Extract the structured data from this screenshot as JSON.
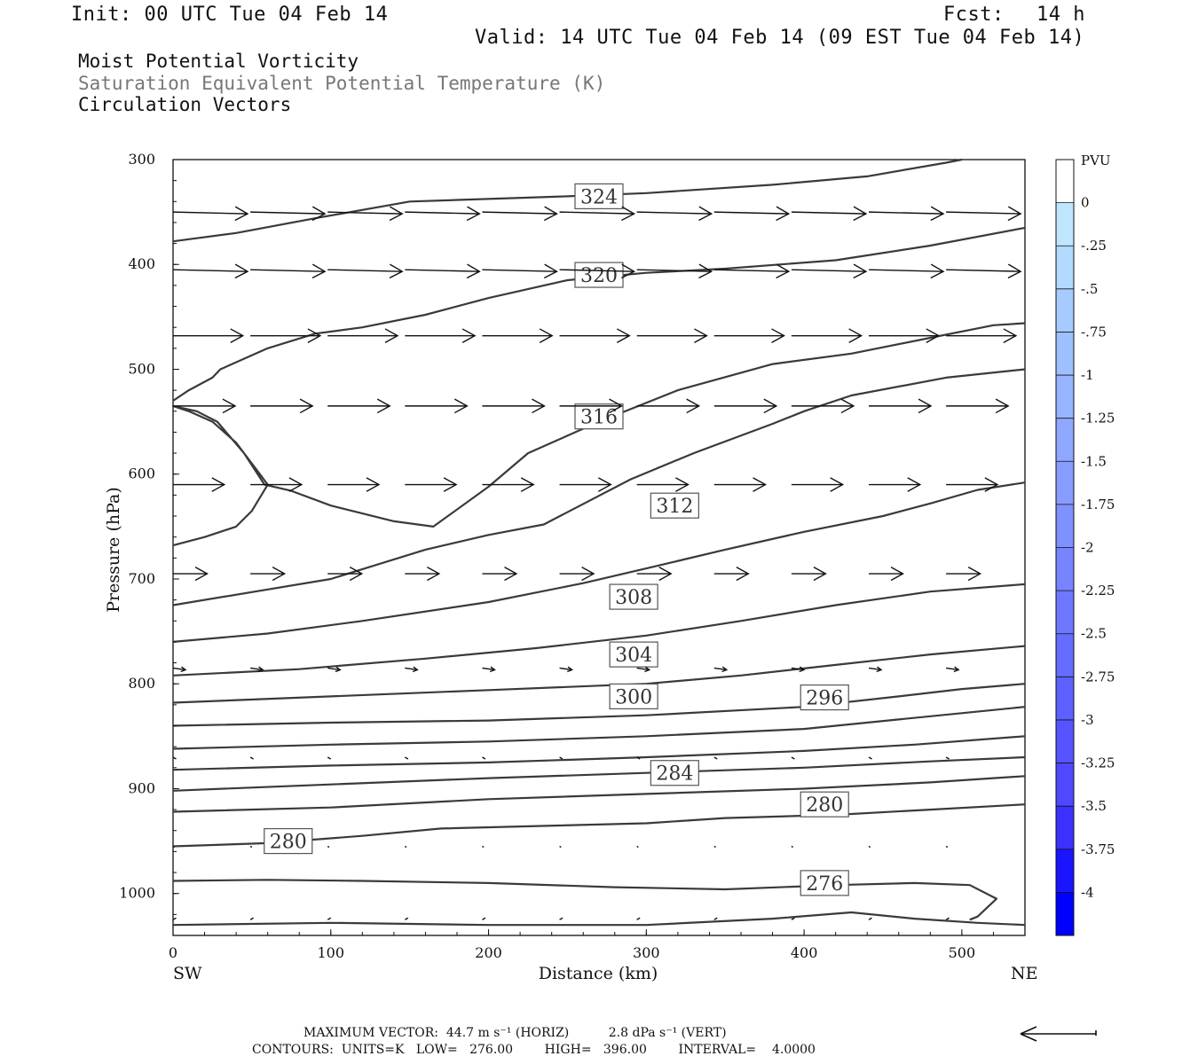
{
  "header": {
    "init": "Init: 00 UTC Tue 04 Feb 14",
    "fcst_label": "Fcst:",
    "fcst_value": "14 h",
    "valid": "Valid: 14 UTC Tue 04 Feb 14 (09 EST Tue 04 Feb 14)"
  },
  "titles": {
    "line1": "Moist Potential Vorticity",
    "line2": "Saturation Equivalent Potential Temperature (K)",
    "line3": "Circulation Vectors"
  },
  "footer": {
    "max_vector": "MAXIMUM VECTOR:  44.7 m s⁻¹ (HORIZ)          2.8 dPa s⁻¹ (VERT)",
    "contours": "CONTOURS:  UNITS=K   LOW=   276.00        HIGH=   396.00        INTERVAL=    4.0000"
  },
  "chart_data": {
    "type": "cross-section contour + vector",
    "xlabel": "Distance (km)",
    "ylabel": "Pressure (hPa)",
    "xlim": [
      0,
      540
    ],
    "ylim": [
      1040,
      300
    ],
    "x_ticks": [
      0,
      100,
      200,
      300,
      400,
      500
    ],
    "y_ticks": [
      300,
      400,
      500,
      600,
      700,
      800,
      900,
      1000
    ],
    "x_end_labels": {
      "left": "SW",
      "right": "NE"
    },
    "colorbar": {
      "label": "PVU",
      "ticks": [
        "0",
        "-.25",
        "-.5",
        "-.75",
        "-1",
        "-1.25",
        "-1.5",
        "-1.75",
        "-2",
        "-2.25",
        "-2.5",
        "-2.75",
        "-3",
        "-3.25",
        "-3.5",
        "-3.75",
        "-4"
      ],
      "colors": [
        "#ffffff",
        "#bfe6ff",
        "#b3d9ff",
        "#a6ccff",
        "#9ec0ff",
        "#97b4ff",
        "#8fa8ff",
        "#879cff",
        "#7f90ff",
        "#7684ff",
        "#6e78ff",
        "#666cff",
        "#5e60ff",
        "#5654ff",
        "#4e48ff",
        "#3c30ff",
        "#1a14ff",
        "#0000ff"
      ]
    },
    "contours": [
      {
        "label": "324",
        "points": [
          [
            0,
            378
          ],
          [
            40,
            370
          ],
          [
            90,
            356
          ],
          [
            150,
            340
          ],
          [
            250,
            335
          ],
          [
            300,
            332
          ],
          [
            380,
            324
          ],
          [
            440,
            316
          ],
          [
            490,
            303
          ],
          [
            500,
            300
          ]
        ]
      },
      {
        "label": "320",
        "points": [
          [
            0,
            530
          ],
          [
            10,
            520
          ],
          [
            25,
            508
          ],
          [
            30,
            500
          ],
          [
            60,
            480
          ],
          [
            90,
            466
          ],
          [
            120,
            460
          ],
          [
            160,
            448
          ],
          [
            200,
            432
          ],
          [
            250,
            415
          ],
          [
            300,
            408
          ],
          [
            350,
            404
          ],
          [
            420,
            396
          ],
          [
            480,
            382
          ],
          [
            540,
            365
          ]
        ]
      },
      {
        "label": "316",
        "points": [
          [
            0,
            668
          ],
          [
            20,
            660
          ],
          [
            40,
            650
          ],
          [
            50,
            635
          ],
          [
            60,
            610
          ],
          [
            55,
            600
          ],
          [
            40,
            570
          ],
          [
            25,
            550
          ],
          [
            10,
            540
          ],
          [
            0,
            535
          ],
          [
            15,
            540
          ],
          [
            28,
            550
          ],
          [
            45,
            580
          ],
          [
            58,
            610
          ],
          [
            75,
            616
          ],
          [
            100,
            630
          ],
          [
            140,
            645
          ],
          [
            165,
            650
          ],
          [
            200,
            612
          ],
          [
            225,
            580
          ],
          [
            270,
            550
          ],
          [
            320,
            520
          ],
          [
            380,
            495
          ],
          [
            430,
            485
          ],
          [
            480,
            470
          ],
          [
            520,
            458
          ],
          [
            540,
            456
          ]
        ]
      },
      {
        "label": "312",
        "points": [
          [
            0,
            725
          ],
          [
            60,
            710
          ],
          [
            100,
            700
          ],
          [
            160,
            672
          ],
          [
            200,
            658
          ],
          [
            235,
            648
          ],
          [
            290,
            605
          ],
          [
            330,
            580
          ],
          [
            380,
            552
          ],
          [
            400,
            540
          ],
          [
            430,
            525
          ],
          [
            490,
            508
          ],
          [
            540,
            500
          ]
        ]
      },
      {
        "label": "308",
        "points": [
          [
            0,
            760
          ],
          [
            60,
            752
          ],
          [
            120,
            740
          ],
          [
            200,
            722
          ],
          [
            260,
            704
          ],
          [
            300,
            690
          ],
          [
            350,
            672
          ],
          [
            400,
            655
          ],
          [
            450,
            640
          ],
          [
            480,
            628
          ],
          [
            510,
            615
          ],
          [
            540,
            608
          ]
        ]
      },
      {
        "label": "304",
        "points": [
          [
            0,
            792
          ],
          [
            80,
            786
          ],
          [
            160,
            776
          ],
          [
            230,
            766
          ],
          [
            300,
            754
          ],
          [
            360,
            740
          ],
          [
            420,
            725
          ],
          [
            480,
            712
          ],
          [
            540,
            705
          ]
        ]
      },
      {
        "label": "300",
        "points": [
          [
            0,
            818
          ],
          [
            100,
            812
          ],
          [
            200,
            806
          ],
          [
            300,
            800
          ],
          [
            360,
            792
          ],
          [
            420,
            782
          ],
          [
            480,
            772
          ],
          [
            540,
            764
          ]
        ]
      },
      {
        "label": "296",
        "points": [
          [
            0,
            840
          ],
          [
            100,
            837
          ],
          [
            200,
            835
          ],
          [
            300,
            830
          ],
          [
            400,
            822
          ],
          [
            460,
            812
          ],
          [
            500,
            805
          ],
          [
            540,
            800
          ]
        ]
      },
      {
        "label": "",
        "points": [
          [
            0,
            862
          ],
          [
            100,
            858
          ],
          [
            200,
            855
          ],
          [
            300,
            850
          ],
          [
            400,
            843
          ],
          [
            460,
            834
          ],
          [
            540,
            822
          ]
        ]
      },
      {
        "label": "",
        "points": [
          [
            0,
            882
          ],
          [
            100,
            878
          ],
          [
            200,
            875
          ],
          [
            300,
            870
          ],
          [
            400,
            864
          ],
          [
            470,
            858
          ],
          [
            540,
            850
          ]
        ]
      },
      {
        "label": "284",
        "points": [
          [
            0,
            902
          ],
          [
            100,
            896
          ],
          [
            200,
            890
          ],
          [
            300,
            885
          ],
          [
            400,
            880
          ],
          [
            480,
            874
          ],
          [
            540,
            870
          ]
        ]
      },
      {
        "label": "",
        "points": [
          [
            0,
            922
          ],
          [
            100,
            918
          ],
          [
            200,
            910
          ],
          [
            300,
            905
          ],
          [
            400,
            900
          ],
          [
            480,
            894
          ],
          [
            540,
            888
          ]
        ]
      },
      {
        "label": "280",
        "points": [
          [
            0,
            955
          ],
          [
            60,
            952
          ],
          [
            120,
            945
          ],
          [
            170,
            938
          ],
          [
            300,
            933
          ],
          [
            350,
            928
          ],
          [
            420,
            925
          ],
          [
            480,
            920
          ],
          [
            540,
            915
          ]
        ]
      },
      {
        "label": "276",
        "points": [
          [
            0,
            988
          ],
          [
            60,
            987
          ],
          [
            120,
            988
          ],
          [
            200,
            990
          ],
          [
            280,
            994
          ],
          [
            350,
            996
          ],
          [
            420,
            992
          ],
          [
            470,
            990
          ],
          [
            505,
            992
          ],
          [
            522,
            1005
          ],
          [
            510,
            1022
          ],
          [
            505,
            1025
          ]
        ]
      },
      {
        "label": "",
        "points": [
          [
            0,
            1030
          ],
          [
            100,
            1028
          ],
          [
            200,
            1030
          ],
          [
            300,
            1030
          ],
          [
            380,
            1024
          ],
          [
            430,
            1018
          ],
          [
            470,
            1024
          ],
          [
            510,
            1028
          ],
          [
            540,
            1030
          ]
        ]
      }
    ],
    "vectors": {
      "columns": [
        0,
        49,
        98,
        147,
        196,
        245,
        294,
        343,
        392,
        441,
        490
      ],
      "levels": [
        {
          "p": 350,
          "u": 48,
          "dp": 2
        },
        {
          "p": 405,
          "u": 48,
          "dp": 2
        },
        {
          "p": 468,
          "u": 45,
          "dp": 0
        },
        {
          "p": 535,
          "u": 40,
          "dp": 0
        },
        {
          "p": 610,
          "u": 33,
          "dp": 0
        },
        {
          "p": 695,
          "u": 22,
          "dp": 0
        },
        {
          "p": 785,
          "u": 8,
          "dp": 2
        },
        {
          "p": 870,
          "u": 2,
          "dp": 2
        },
        {
          "p": 955,
          "u": 1,
          "dp": 1
        },
        {
          "p": 1025,
          "u": 2,
          "dp": -2
        }
      ]
    }
  }
}
